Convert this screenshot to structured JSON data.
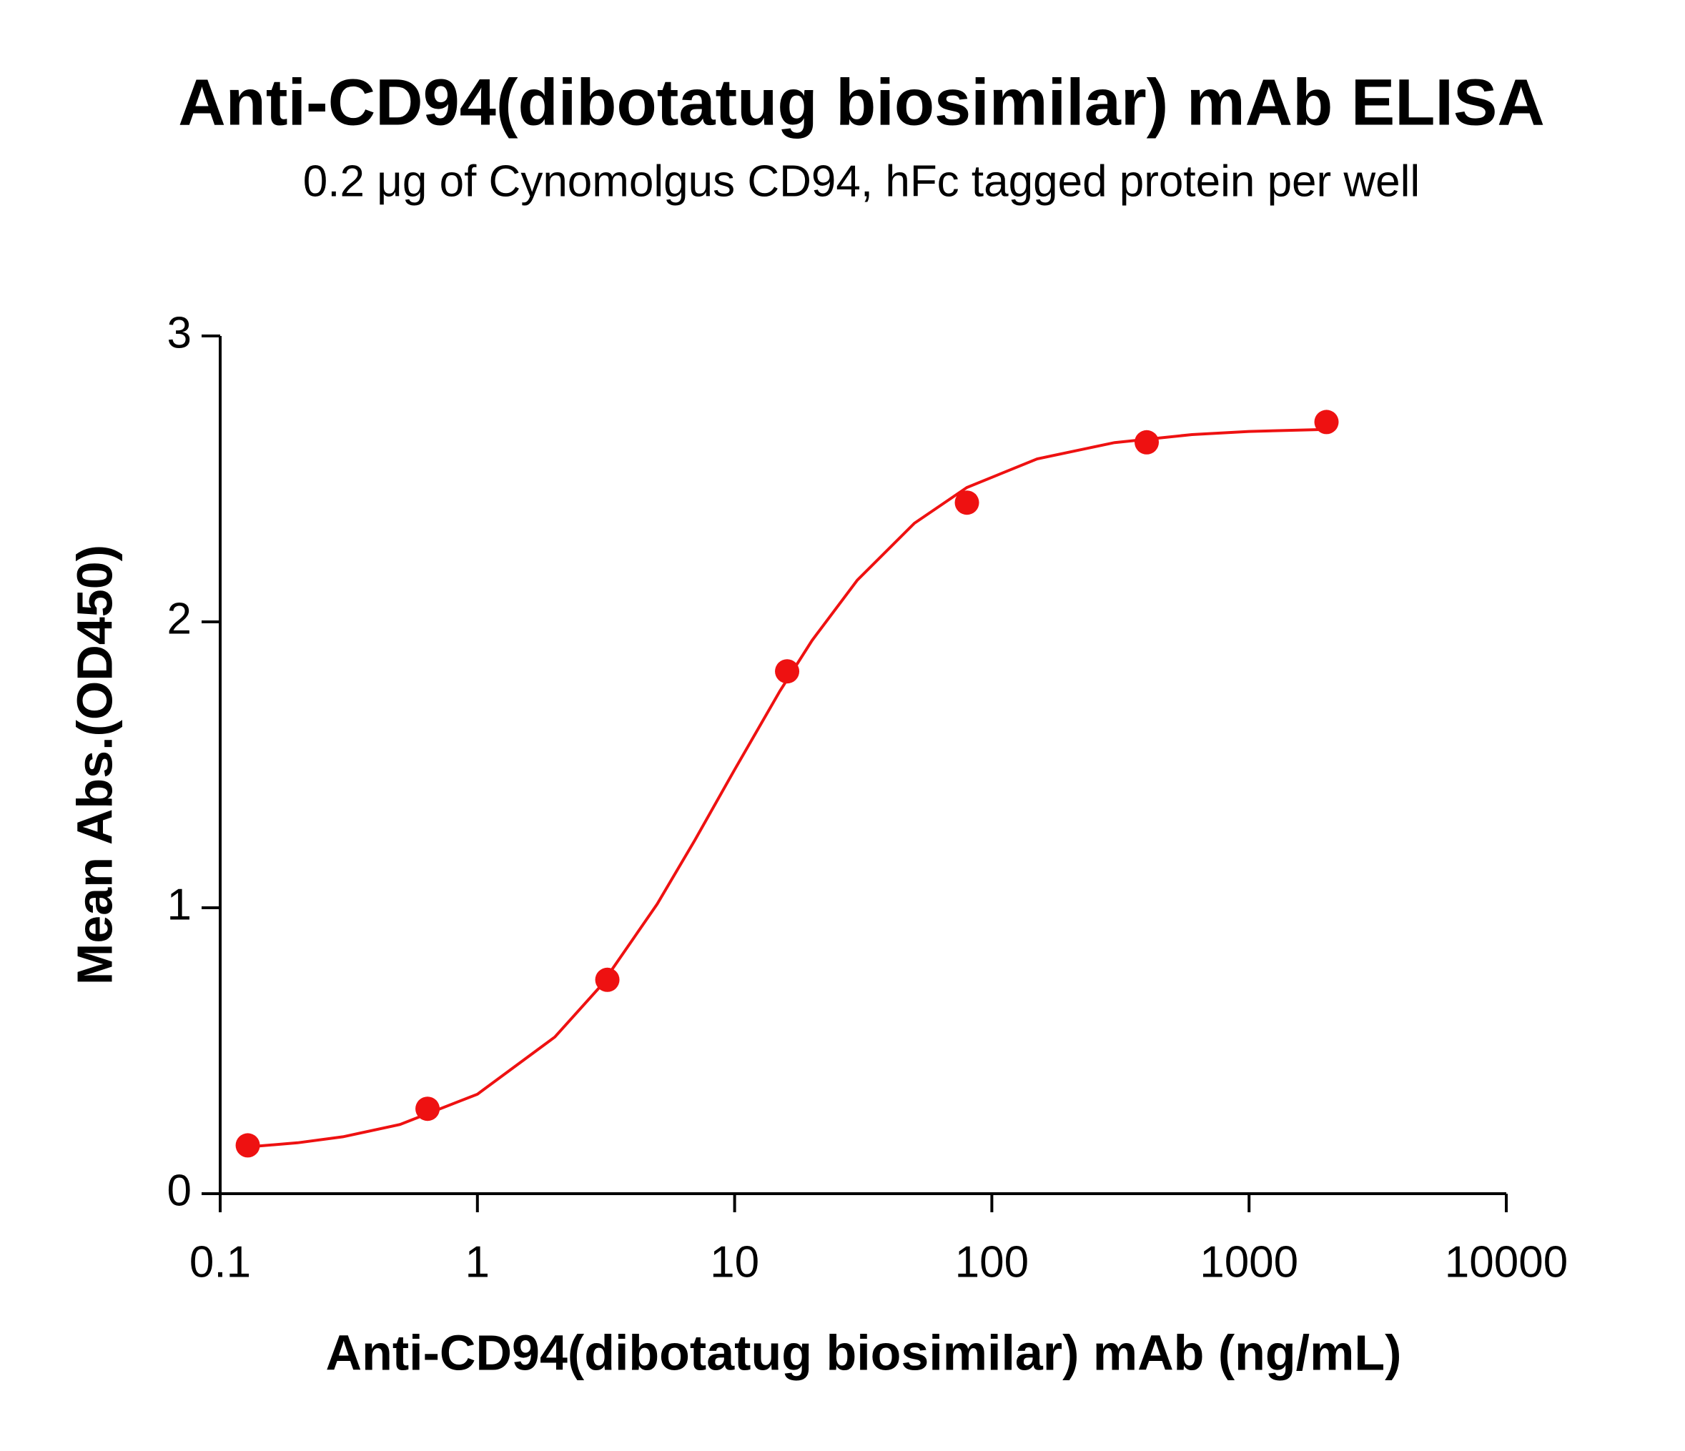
{
  "chart_data": {
    "type": "scatter",
    "title": "Anti-CD94(dibotatug biosimilar) mAb ELISA",
    "subtitle": "0.2 μg of Cynomolgus CD94, hFc tagged protein per well",
    "x_label": "Anti-CD94(dibotatug biosimilar) mAb (ng/mL)",
    "y_label": "Mean Abs.(OD450)",
    "x": [
      0.128,
      0.64,
      3.2,
      16,
      80,
      400,
      2000
    ],
    "values": [
      0.169,
      0.297,
      0.748,
      1.827,
      2.417,
      2.628,
      2.699
    ],
    "color": "#ee1111",
    "fit": {
      "x": [
        0.13,
        0.2,
        0.3,
        0.5,
        1,
        2,
        3,
        5,
        7,
        10,
        15,
        20,
        30,
        50,
        80,
        150,
        300,
        600,
        1000,
        2000
      ],
      "y": [
        0.164,
        0.178,
        0.199,
        0.242,
        0.348,
        0.548,
        0.724,
        1.013,
        1.236,
        1.483,
        1.758,
        1.935,
        2.146,
        2.345,
        2.47,
        2.57,
        2.627,
        2.655,
        2.666,
        2.673
      ]
    },
    "xscale": "log",
    "xlim": [
      0.1,
      10000
    ],
    "xticks": [
      0.1,
      1,
      10,
      100,
      1000,
      10000
    ],
    "ylim": [
      0,
      3
    ],
    "yticks": [
      0,
      1,
      2,
      3
    ],
    "grid": false
  }
}
